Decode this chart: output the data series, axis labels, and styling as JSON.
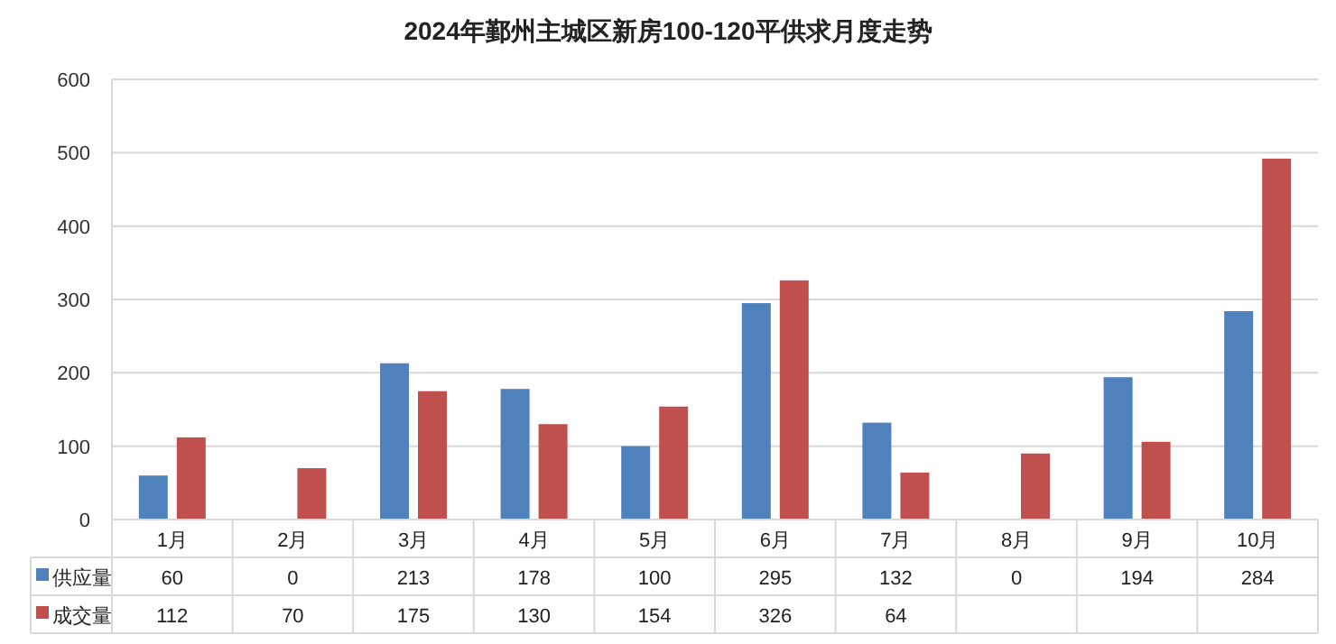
{
  "chart_data": {
    "type": "bar",
    "title": "2024年鄞州主城区新房100-120平供求月度走势",
    "categories": [
      "1月",
      "2月",
      "3月",
      "4月",
      "5月",
      "6月",
      "7月",
      "8月",
      "9月",
      "10月"
    ],
    "series": [
      {
        "name": "供应量",
        "color": "#4f81bd",
        "values": [
          60,
          0,
          213,
          178,
          100,
          295,
          132,
          0,
          194,
          284
        ],
        "value_labels": [
          "60",
          "0",
          "213",
          "178",
          "100",
          "295",
          "132",
          "0",
          "194",
          "284"
        ]
      },
      {
        "name": "成交量",
        "color": "#c0504d",
        "values": [
          112,
          70,
          175,
          130,
          154,
          326,
          64,
          90,
          106,
          492
        ],
        "value_labels": [
          "112",
          "70",
          "175",
          "130",
          "154",
          "326",
          "64",
          null,
          null,
          null
        ]
      }
    ],
    "ylim": [
      0,
      600
    ],
    "yticks": [
      0,
      100,
      200,
      300,
      400,
      500,
      600
    ],
    "grid": "y",
    "legend": "left"
  }
}
